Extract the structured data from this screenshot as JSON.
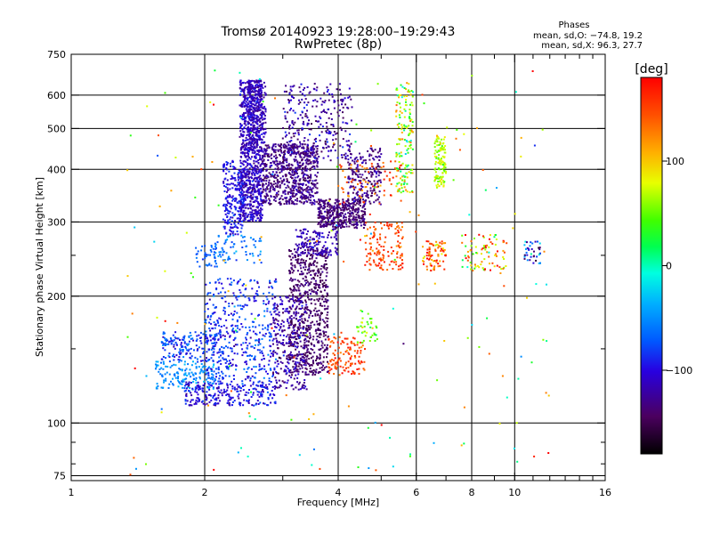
{
  "header": {
    "title_line1": "Tromsø 20140923 19:28:00–19:29:43",
    "title_line2": "RwPretec (8p)"
  },
  "stats": {
    "heading": "Phases",
    "line_o": "mean, sd,O: −74.8, 19.2",
    "line_x": "mean, sd,X:  96.3, 27.7"
  },
  "colorbar": {
    "unit_label": "[deg]",
    "min": -180,
    "max": 180,
    "ticks": [
      {
        "value": 100,
        "label": "100"
      },
      {
        "value": 0,
        "label": "0"
      },
      {
        "value": -100,
        "label": "−100"
      }
    ]
  },
  "chart_data": {
    "type": "scatter",
    "title": "Tromsø 20140923 19:28:00–19:29:43",
    "subtitle": "RwPretec (8p)",
    "xlabel": "Frequency [MHz]",
    "ylabel": "Stationary phase Virtual Height [km]",
    "xscale": "log",
    "yscale": "log",
    "xlim": [
      1,
      16
    ],
    "ylim": [
      73,
      750
    ],
    "grid": true,
    "x_ticks": [
      1,
      2,
      4,
      6,
      8,
      10,
      16
    ],
    "x_tick_labels": [
      "1",
      "2",
      "4",
      "6",
      "8",
      "10",
      "16"
    ],
    "x_minor_ticks": [
      3,
      5,
      7,
      9,
      11,
      12,
      13,
      14,
      15
    ],
    "y_ticks": [
      75,
      100,
      200,
      300,
      400,
      500,
      600,
      750
    ],
    "y_tick_labels": [
      "75",
      "100",
      "200",
      "300",
      "400",
      "500",
      "600",
      "750"
    ],
    "y_minor_ticks": [
      80,
      90,
      150,
      250
    ],
    "color_variable": "phase [deg]",
    "clusters": [
      {
        "f": [
          2.4,
          2.7
        ],
        "h": [
          300,
          650
        ],
        "phase": -110,
        "spread": 20,
        "n": 900
      },
      {
        "f": [
          2.5,
          2.75
        ],
        "h": [
          440,
          650
        ],
        "phase": -115,
        "spread": 15,
        "n": 200
      },
      {
        "f": [
          2.2,
          2.45
        ],
        "h": [
          280,
          420
        ],
        "phase": -95,
        "spread": 20,
        "n": 220
      },
      {
        "f": [
          2.7,
          3.6
        ],
        "h": [
          330,
          460
        ],
        "phase": -130,
        "spread": 20,
        "n": 700
      },
      {
        "f": [
          3.6,
          4.6
        ],
        "h": [
          290,
          340
        ],
        "phase": -135,
        "spread": 15,
        "n": 400
      },
      {
        "f": [
          3.0,
          4.3
        ],
        "h": [
          420,
          640
        ],
        "phase": -120,
        "spread": 30,
        "n": 300
      },
      {
        "f": [
          4.2,
          5.0
        ],
        "h": [
          330,
          450
        ],
        "phase": -130,
        "spread": 20,
        "n": 200
      },
      {
        "f": [
          4.0,
          5.6
        ],
        "h": [
          330,
          420
        ],
        "phase": 140,
        "spread": 30,
        "n": 70
      },
      {
        "f": [
          4.6,
          5.6
        ],
        "h": [
          230,
          300
        ],
        "phase": 150,
        "spread": 25,
        "n": 140
      },
      {
        "f": [
          5.4,
          5.9
        ],
        "h": [
          350,
          650
        ],
        "phase": 60,
        "spread": 70,
        "n": 160
      },
      {
        "f": [
          6.6,
          7.0
        ],
        "h": [
          360,
          480
        ],
        "phase": 70,
        "spread": 30,
        "n": 120
      },
      {
        "f": [
          6.2,
          7.0
        ],
        "h": [
          230,
          270
        ],
        "phase": 140,
        "spread": 60,
        "n": 80
      },
      {
        "f": [
          2.1,
          2.7
        ],
        "h": [
          240,
          280
        ],
        "phase": -60,
        "spread": 20,
        "n": 70
      },
      {
        "f": [
          1.9,
          2.15
        ],
        "h": [
          235,
          265
        ],
        "phase": -70,
        "spread": 15,
        "n": 40
      },
      {
        "f": [
          1.6,
          2.2
        ],
        "h": [
          140,
          165
        ],
        "phase": -80,
        "spread": 30,
        "n": 180
      },
      {
        "f": [
          1.55,
          2.1
        ],
        "h": [
          120,
          140
        ],
        "phase": -50,
        "spread": 20,
        "n": 150
      },
      {
        "f": [
          1.8,
          2.9
        ],
        "h": [
          110,
          125
        ],
        "phase": -100,
        "spread": 25,
        "n": 250
      },
      {
        "f": [
          2.0,
          2.9
        ],
        "h": [
          125,
          220
        ],
        "phase": -85,
        "spread": 30,
        "n": 450
      },
      {
        "f": [
          3.1,
          3.8
        ],
        "h": [
          130,
          260
        ],
        "phase": -140,
        "spread": 15,
        "n": 650
      },
      {
        "f": [
          2.85,
          3.4
        ],
        "h": [
          120,
          200
        ],
        "phase": -120,
        "spread": 25,
        "n": 300
      },
      {
        "f": [
          3.2,
          4.0
        ],
        "h": [
          250,
          290
        ],
        "phase": -115,
        "spread": 20,
        "n": 150
      },
      {
        "f": [
          3.8,
          4.6
        ],
        "h": [
          130,
          160
        ],
        "phase": 150,
        "spread": 25,
        "n": 120
      },
      {
        "f": [
          4.4,
          4.9
        ],
        "h": [
          155,
          185
        ],
        "phase": 50,
        "spread": 40,
        "n": 40
      },
      {
        "f": [
          7.6,
          9.6
        ],
        "h": [
          230,
          280
        ],
        "phase": 110,
        "spread": 80,
        "n": 80
      },
      {
        "f": [
          10.5,
          11.5
        ],
        "h": [
          235,
          270
        ],
        "phase": -80,
        "spread": 80,
        "n": 40
      },
      {
        "f": [
          1.3,
          12.0
        ],
        "h": [
          75,
          700
        ],
        "phase": 60,
        "spread": 120,
        "n": 180
      }
    ]
  }
}
